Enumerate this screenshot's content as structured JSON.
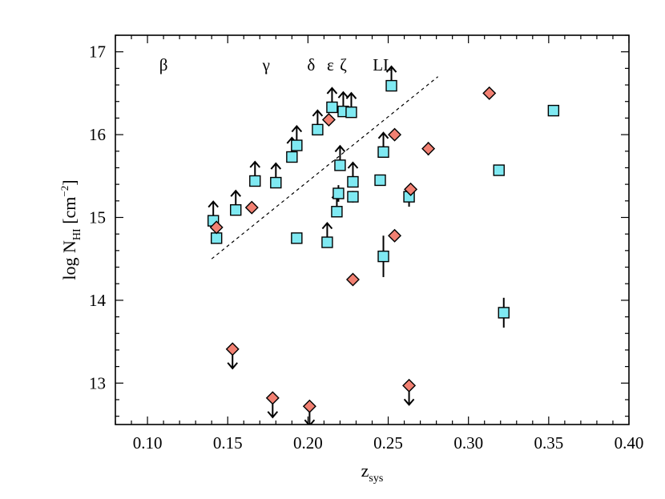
{
  "chart_data": {
    "type": "scatter",
    "xlabel": {
      "main": "z",
      "sub": "sys"
    },
    "ylabel": {
      "main": "log N",
      "sub": "HI",
      "bracket_open": " [cm",
      "sup": "−2",
      "bracket_close": "]"
    },
    "xlim": [
      0.08,
      0.4
    ],
    "ylim": [
      12.5,
      17.2
    ],
    "xticks": [
      0.1,
      0.15,
      0.2,
      0.25,
      0.3,
      0.35,
      0.4
    ],
    "xtick_labels": [
      "0.10",
      "0.15",
      "0.20",
      "0.25",
      "0.30",
      "0.35",
      "0.40"
    ],
    "yticks": [
      13,
      14,
      15,
      16,
      17
    ],
    "ytick_labels": [
      "13",
      "14",
      "15",
      "16",
      "17"
    ],
    "grid": false,
    "line_markers": [
      {
        "label": "β",
        "z": 0.11
      },
      {
        "label": "γ",
        "z": 0.174
      },
      {
        "label": "δ",
        "z": 0.202
      },
      {
        "label": "ε",
        "z": 0.214
      },
      {
        "label": "ζ",
        "z": 0.222
      },
      {
        "label": "LL",
        "z": 0.2468
      }
    ],
    "reference_line": {
      "style": "dashed",
      "from": [
        0.14,
        14.5
      ],
      "to": [
        0.281,
        16.7
      ]
    },
    "series": [
      {
        "marker": "square",
        "color": "#7fe9f2",
        "points": [
          {
            "x": 0.141,
            "y": 14.96,
            "limit": "lower"
          },
          {
            "x": 0.143,
            "y": 14.75
          },
          {
            "x": 0.155,
            "y": 15.09,
            "limit": "lower"
          },
          {
            "x": 0.167,
            "y": 15.44,
            "limit": "lower"
          },
          {
            "x": 0.18,
            "y": 15.42,
            "limit": "lower"
          },
          {
            "x": 0.19,
            "y": 15.73,
            "limit": "lower"
          },
          {
            "x": 0.193,
            "y": 15.87,
            "limit": "lower"
          },
          {
            "x": 0.193,
            "y": 14.75,
            "err": 0.05
          },
          {
            "x": 0.206,
            "y": 16.06,
            "limit": "lower"
          },
          {
            "x": 0.212,
            "y": 14.7,
            "limit": "lower"
          },
          {
            "x": 0.215,
            "y": 16.33,
            "limit": "lower"
          },
          {
            "x": 0.218,
            "y": 15.07,
            "limit": "lower"
          },
          {
            "x": 0.219,
            "y": 15.29,
            "err": 0.1
          },
          {
            "x": 0.22,
            "y": 15.63,
            "limit": "lower"
          },
          {
            "x": 0.222,
            "y": 16.28,
            "limit": "lower"
          },
          {
            "x": 0.227,
            "y": 16.27,
            "limit": "lower"
          },
          {
            "x": 0.228,
            "y": 15.43,
            "limit": "lower"
          },
          {
            "x": 0.228,
            "y": 15.25,
            "err": 0.07
          },
          {
            "x": 0.245,
            "y": 15.45
          },
          {
            "x": 0.247,
            "y": 14.53,
            "err": 0.25
          },
          {
            "x": 0.247,
            "y": 15.79,
            "limit": "lower"
          },
          {
            "x": 0.252,
            "y": 16.59,
            "limit": "lower"
          },
          {
            "x": 0.263,
            "y": 15.25,
            "err": 0.12
          },
          {
            "x": 0.319,
            "y": 15.57
          },
          {
            "x": 0.322,
            "y": 13.85,
            "err": 0.18
          },
          {
            "x": 0.353,
            "y": 16.29
          }
        ]
      },
      {
        "marker": "diamond",
        "color": "#f28072",
        "points": [
          {
            "x": 0.143,
            "y": 14.88
          },
          {
            "x": 0.153,
            "y": 13.41,
            "limit": "upper"
          },
          {
            "x": 0.165,
            "y": 15.12
          },
          {
            "x": 0.178,
            "y": 12.82,
            "limit": "upper"
          },
          {
            "x": 0.201,
            "y": 12.72,
            "limit": "upper"
          },
          {
            "x": 0.213,
            "y": 16.18
          },
          {
            "x": 0.228,
            "y": 14.25
          },
          {
            "x": 0.254,
            "y": 14.78
          },
          {
            "x": 0.254,
            "y": 16.0
          },
          {
            "x": 0.263,
            "y": 12.97,
            "limit": "upper"
          },
          {
            "x": 0.264,
            "y": 15.34
          },
          {
            "x": 0.275,
            "y": 15.83,
            "err": 0.08
          },
          {
            "x": 0.313,
            "y": 16.5
          }
        ]
      }
    ]
  }
}
